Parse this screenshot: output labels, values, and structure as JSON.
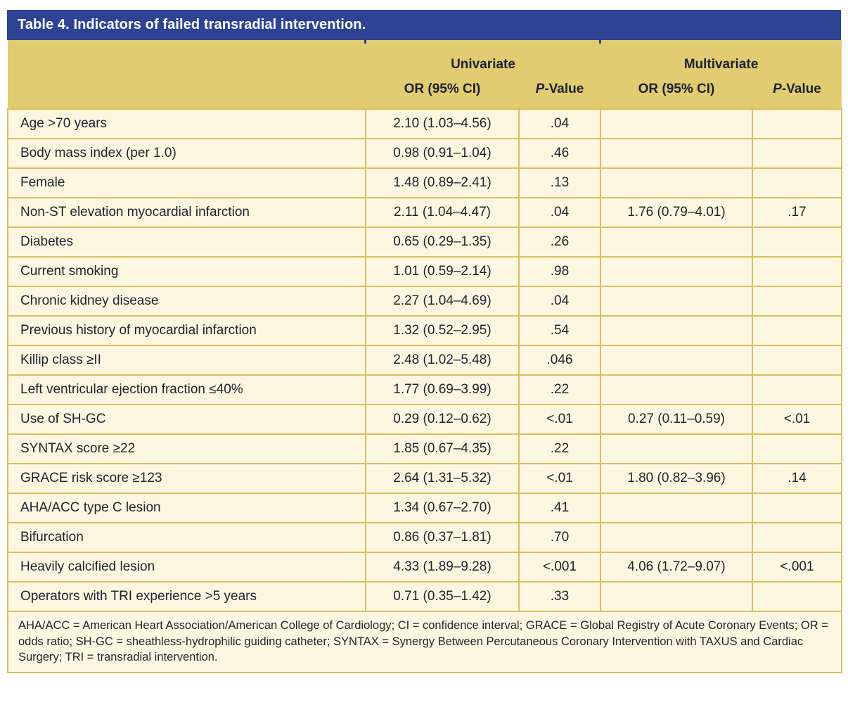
{
  "title": "Table 4. Indicators of failed transradial intervention.",
  "colors": {
    "title_bar": "#2e4394",
    "header_gold": "#e2cc71",
    "row_cream": "#fdf6e0",
    "grid_border": "#d9c05f",
    "text": "#20242e"
  },
  "header": {
    "groups": [
      {
        "label": "Univariate"
      },
      {
        "label": "Multivariate"
      }
    ],
    "or_label": "OR (95% CI)",
    "p_prefix": "P",
    "p_suffix": "-Value"
  },
  "rows": [
    {
      "label": "Age >70 years",
      "uni_or": "2.10 (1.03–4.56)",
      "uni_p": ".04",
      "multi_or": "",
      "multi_p": ""
    },
    {
      "label": "Body mass index (per 1.0)",
      "uni_or": "0.98 (0.91–1.04)",
      "uni_p": ".46",
      "multi_or": "",
      "multi_p": ""
    },
    {
      "label": "Female",
      "uni_or": "1.48 (0.89–2.41)",
      "uni_p": ".13",
      "multi_or": "",
      "multi_p": ""
    },
    {
      "label": "Non-ST elevation myocardial infarction",
      "uni_or": "2.11 (1.04–4.47)",
      "uni_p": ".04",
      "multi_or": "1.76 (0.79–4.01)",
      "multi_p": ".17"
    },
    {
      "label": "Diabetes",
      "uni_or": "0.65 (0.29–1.35)",
      "uni_p": ".26",
      "multi_or": "",
      "multi_p": ""
    },
    {
      "label": "Current smoking",
      "uni_or": "1.01 (0.59–2.14)",
      "uni_p": ".98",
      "multi_or": "",
      "multi_p": ""
    },
    {
      "label": "Chronic kidney disease",
      "uni_or": "2.27 (1.04–4.69)",
      "uni_p": ".04",
      "multi_or": "",
      "multi_p": ""
    },
    {
      "label": "Previous history of myocardial infarction",
      "uni_or": "1.32 (0.52–2.95)",
      "uni_p": ".54",
      "multi_or": "",
      "multi_p": ""
    },
    {
      "label": "Killip class ≥II",
      "uni_or": "2.48 (1.02–5.48)",
      "uni_p": ".046",
      "multi_or": "",
      "multi_p": ""
    },
    {
      "label": "Left ventricular ejection fraction ≤40%",
      "uni_or": "1.77 (0.69–3.99)",
      "uni_p": ".22",
      "multi_or": "",
      "multi_p": ""
    },
    {
      "label": "Use of SH-GC",
      "uni_or": "0.29 (0.12–0.62)",
      "uni_p": "<.01",
      "multi_or": "0.27 (0.11–0.59)",
      "multi_p": "<.01"
    },
    {
      "label": "SYNTAX score ≥22",
      "uni_or": "1.85 (0.67–4.35)",
      "uni_p": ".22",
      "multi_or": "",
      "multi_p": ""
    },
    {
      "label": "GRACE risk score ≥123",
      "uni_or": "2.64 (1.31–5.32)",
      "uni_p": "<.01",
      "multi_or": "1.80 (0.82–3.96)",
      "multi_p": ".14"
    },
    {
      "label": "AHA/ACC type C lesion",
      "uni_or": "1.34 (0.67–2.70)",
      "uni_p": ".41",
      "multi_or": "",
      "multi_p": ""
    },
    {
      "label": "Bifurcation",
      "uni_or": "0.86 (0.37–1.81)",
      "uni_p": ".70",
      "multi_or": "",
      "multi_p": ""
    },
    {
      "label": "Heavily calcified lesion",
      "uni_or": "4.33 (1.89–9.28)",
      "uni_p": "<.001",
      "multi_or": "4.06 (1.72–9.07)",
      "multi_p": "<.001"
    },
    {
      "label": "Operators with TRI experience >5 years",
      "uni_or": "0.71 (0.35–1.42)",
      "uni_p": ".33",
      "multi_or": "",
      "multi_p": ""
    }
  ],
  "footnote": "AHA/ACC = American Heart Association/American College of Cardiology; CI = confidence interval; GRACE = Global Registry of Acute Coronary Events; OR = odds ratio; SH-GC = sheathless-hydrophilic guiding catheter; SYNTAX = Synergy Between Percutaneous Coronary Intervention with TAXUS and Cardiac Surgery; TRI = transradial intervention."
}
